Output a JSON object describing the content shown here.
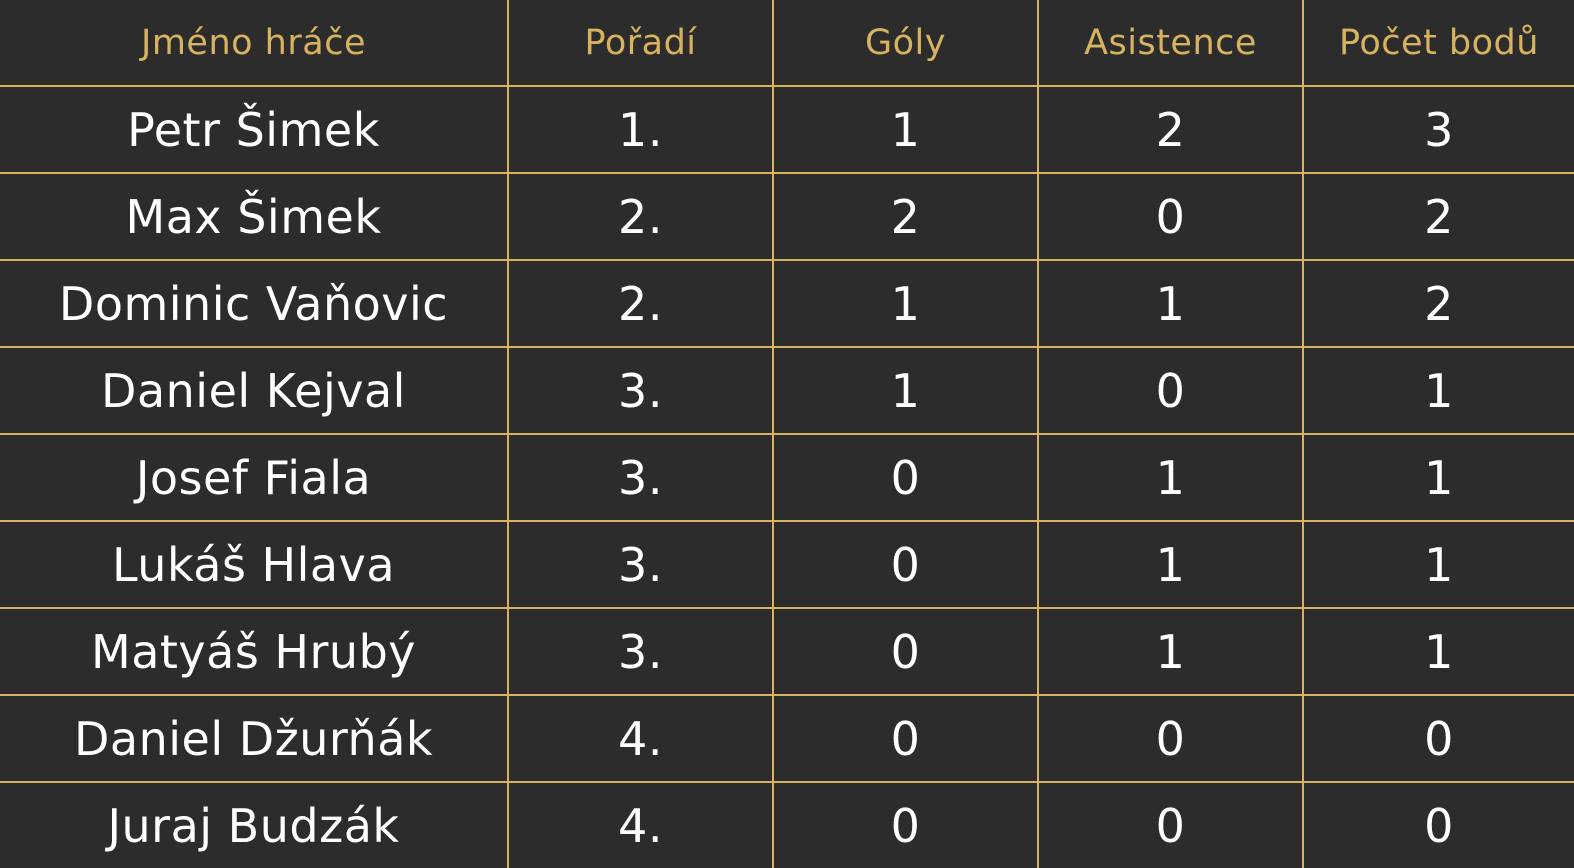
{
  "table": {
    "headers": [
      "Jméno hráče",
      "Pořadí",
      "Góly",
      "Asistence",
      "Počet bodů"
    ],
    "rows": [
      [
        "Petr Šimek",
        "1.",
        "1",
        "2",
        "3"
      ],
      [
        "Max Šimek",
        "2.",
        "2",
        "0",
        "2"
      ],
      [
        "Dominic Vaňovic",
        "2.",
        "1",
        "1",
        "2"
      ],
      [
        "Daniel Kejval",
        "3.",
        "1",
        "0",
        "1"
      ],
      [
        "Josef Fiala",
        "3.",
        "0",
        "1",
        "1"
      ],
      [
        "Lukáš Hlava",
        "3.",
        "0",
        "1",
        "1"
      ],
      [
        "Matyáš Hrubý",
        "3.",
        "0",
        "1",
        "1"
      ],
      [
        "Daniel Džurňák",
        "4.",
        "0",
        "0",
        "0"
      ],
      [
        "Juraj Budzák",
        "4.",
        "0",
        "0",
        "0"
      ]
    ]
  },
  "colors": {
    "background": "#2c2c2c",
    "accent": "#d8b35f",
    "text": "#ffffff"
  }
}
